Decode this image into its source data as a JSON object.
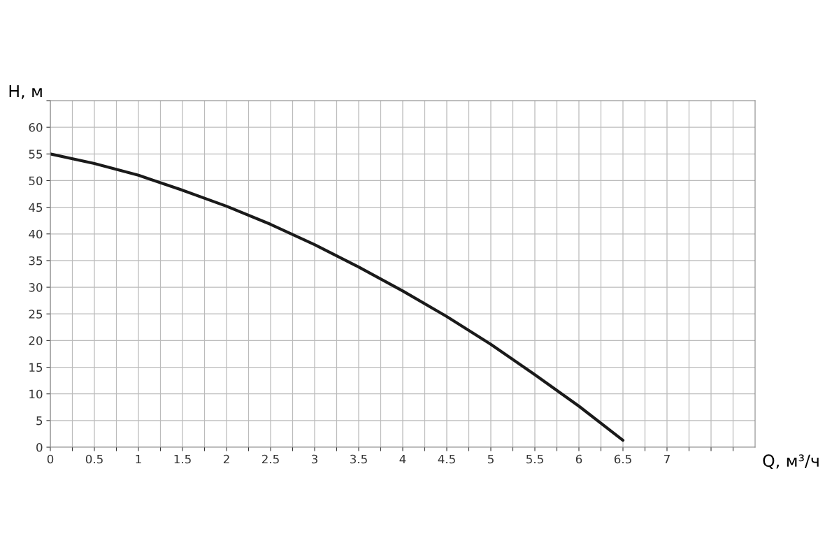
{
  "chart_data": {
    "type": "line",
    "xlabel": "Q, м³/ч",
    "ylabel": "H, м",
    "x": [
      0,
      0.5,
      1,
      1.5,
      2,
      2.5,
      3,
      3.5,
      4,
      4.5,
      5,
      5.5,
      6,
      6.5
    ],
    "series": [
      {
        "color": "#1a1a1a",
        "values": [
          55,
          53.2,
          51,
          48.2,
          45.2,
          41.8,
          38,
          33.8,
          29.3,
          24.5,
          19.3,
          13.6,
          7.7,
          1.3
        ]
      }
    ],
    "xlim": [
      0,
      8
    ],
    "ylim": [
      0,
      65
    ],
    "xticks": [
      0,
      {
        "value": 0.25,
        "label": null
      },
      {
        "value": 0.5,
        "label": "0.5"
      },
      {
        "value": 0.75,
        "label": null
      },
      1,
      {
        "value": 1.25,
        "label": null
      },
      {
        "value": 1.5,
        "label": "1.5"
      },
      {
        "value": 1.75,
        "label": null
      },
      2,
      {
        "value": 2.25,
        "label": null
      },
      {
        "value": 2.5,
        "label": "2.5"
      },
      {
        "value": 2.75,
        "label": null
      },
      3,
      {
        "value": 3.25,
        "label": null
      },
      {
        "value": 3.5,
        "label": "3.5"
      },
      {
        "value": 3.75,
        "label": null
      },
      4,
      {
        "value": 4.25,
        "label": null
      },
      {
        "value": 4.5,
        "label": "4.5"
      },
      {
        "value": 4.75,
        "label": null
      },
      5,
      {
        "value": 5.25,
        "label": null
      },
      {
        "value": 5.5,
        "label": "5.5"
      },
      {
        "value": 5.75,
        "label": null
      },
      6,
      {
        "value": 6.25,
        "label": null
      },
      {
        "value": 6.5,
        "label": "6.5"
      },
      {
        "value": 6.75,
        "label": null
      },
      7,
      {
        "value": 7.25,
        "label": null
      },
      {
        "value": 7.5,
        "label": null
      },
      {
        "value": 7.75,
        "label": null
      }
    ],
    "yticks": [
      0,
      5,
      10,
      15,
      20,
      25,
      30,
      35,
      40,
      45,
      50,
      55,
      60,
      {
        "value": 65,
        "label": null
      }
    ],
    "grid": true,
    "marker": "none",
    "line_style": "solid"
  }
}
